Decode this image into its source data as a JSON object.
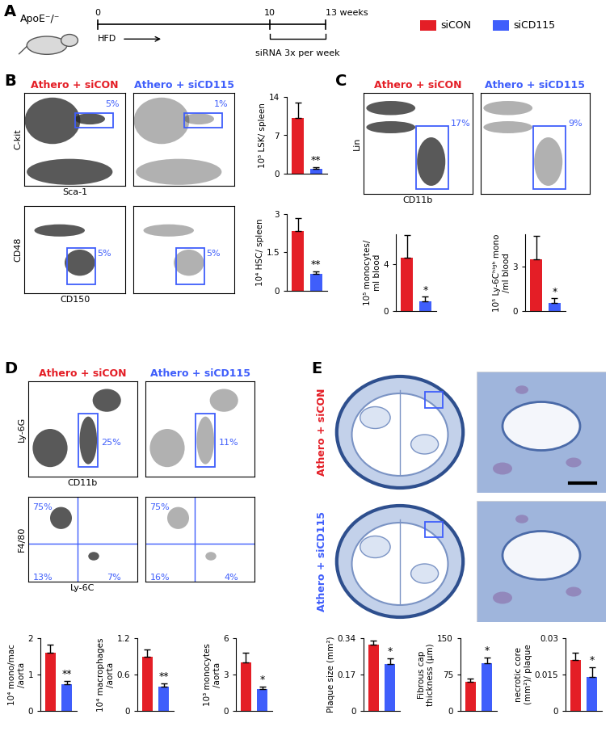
{
  "legend": [
    {
      "name": "siCON",
      "color": "#e41e26"
    },
    {
      "name": "siCD115",
      "color": "#3f5efb"
    }
  ],
  "panel_labels": [
    "A",
    "B",
    "C",
    "D",
    "E"
  ],
  "panel_a": {
    "mouse_label": "ApoE⁻/⁻",
    "timeline_ticks": [
      "0",
      "10",
      "13 weeks"
    ],
    "diet": "HFD",
    "treatment": "siRNA 3x per week"
  },
  "flow_plots": [
    {
      "title": "Athero + siCON",
      "group": "siCON",
      "xlabel": "Sca-1",
      "ylabel": "C-kit",
      "gates": [
        "5%"
      ]
    },
    {
      "title": "Athero + siCD115",
      "group": "siCD115",
      "gates": [
        "1%"
      ]
    },
    {
      "group": "siCON",
      "xlabel": "CD150",
      "ylabel": "CD48",
      "gates": [
        "5%"
      ]
    },
    {
      "group": "siCD115",
      "gates": [
        "5%"
      ]
    },
    {
      "title": "Athero + siCON",
      "group": "siCON",
      "xlabel": "CD11b",
      "ylabel": "Lin",
      "gates": [
        "17%"
      ]
    },
    {
      "title": "Athero + siCD115",
      "group": "siCD115",
      "gates": [
        "9%"
      ]
    },
    {
      "title": "Athero + siCON",
      "group": "siCON",
      "xlabel": "CD11b",
      "ylabel": "Ly-6G",
      "gates": [
        "25%"
      ]
    },
    {
      "title": "Athero + siCD115",
      "group": "siCD115",
      "gates": [
        "11%"
      ]
    },
    {
      "group": "siCON",
      "xlabel": "Ly-6C",
      "ylabel": "F4/80",
      "gates": [
        "75%",
        "13%",
        "7%"
      ]
    },
    {
      "group": "siCD115",
      "gates": [
        "75%",
        "16%",
        "4%"
      ]
    }
  ],
  "histology": [
    {
      "title": "Athero + siCON",
      "group": "siCON"
    },
    {
      "title": "Athero + siCD115",
      "group": "siCD115"
    }
  ],
  "chart_data": [
    {
      "type": "bar",
      "ylabel": "10⁵ LSK/ spleen",
      "categories": [
        null,
        null
      ],
      "values": [
        10.2,
        0.9
      ],
      "errors": [
        2.8,
        0.3
      ],
      "colors": [
        "#e41e26",
        "#3f5efb"
      ],
      "ylim": [
        0,
        14
      ],
      "yticks": [
        0,
        7,
        14
      ],
      "significance": "**",
      "tick_labels": "y"
    },
    {
      "type": "bar",
      "ylabel": "10⁴ HSC/ spleen",
      "categories": [
        null,
        null
      ],
      "values": [
        2.35,
        0.65
      ],
      "errors": [
        0.5,
        0.1
      ],
      "colors": [
        "#e41e26",
        "#3f5efb"
      ],
      "ylim": [
        0,
        3
      ],
      "yticks": [
        0,
        1.5,
        3
      ],
      "significance": "**",
      "tick_labels": "y"
    },
    {
      "type": "bar",
      "ylabel": "10⁵ monocytes/\nml blood",
      "categories": [
        null,
        null
      ],
      "values": [
        4.5,
        0.8
      ],
      "errors": [
        1.9,
        0.4
      ],
      "colors": [
        "#e41e26",
        "#3f5efb"
      ],
      "ylim": [
        0,
        6.5
      ],
      "yticks": [
        0,
        4
      ],
      "significance": "*",
      "tick_labels": "y"
    },
    {
      "type": "bar",
      "ylabel": "10⁵ Ly-6Cʰⁱᵍʰ mono\n/ml blood",
      "categories": [
        null,
        null
      ],
      "values": [
        3.5,
        0.55
      ],
      "errors": [
        1.6,
        0.3
      ],
      "colors": [
        "#e41e26",
        "#3f5efb"
      ],
      "ylim": [
        0,
        5.2
      ],
      "yticks": [
        0,
        3
      ],
      "significance": "*",
      "tick_labels": "y"
    },
    {
      "type": "bar",
      "ylabel": "10⁴ mono/mac\n/aorta",
      "categories": [
        null,
        null
      ],
      "values": [
        1.6,
        0.73
      ],
      "errors": [
        0.22,
        0.1
      ],
      "colors": [
        "#e41e26",
        "#3f5efb"
      ],
      "ylim": [
        0,
        2
      ],
      "yticks": [
        0,
        1,
        2
      ],
      "significance": "**",
      "tick_labels": "y"
    },
    {
      "type": "bar",
      "ylabel": "10⁴ macrophages\n/aorta",
      "categories": [
        null,
        null
      ],
      "values": [
        0.9,
        0.4
      ],
      "errors": [
        0.12,
        0.05
      ],
      "colors": [
        "#e41e26",
        "#3f5efb"
      ],
      "ylim": [
        0,
        1.2
      ],
      "yticks": [
        0,
        0.6,
        1.2
      ],
      "significance": "**",
      "tick_labels": "y"
    },
    {
      "type": "bar",
      "ylabel": "10³ monocytes\n/aorta",
      "categories": [
        null,
        null
      ],
      "values": [
        4.0,
        1.8
      ],
      "errors": [
        0.8,
        0.2
      ],
      "colors": [
        "#e41e26",
        "#3f5efb"
      ],
      "ylim": [
        0,
        6
      ],
      "yticks": [
        0,
        3,
        6
      ],
      "significance": "*",
      "tick_labels": "y"
    },
    {
      "type": "bar",
      "ylabel": "Plaque size (mm²)",
      "categories": [
        null,
        null
      ],
      "values": [
        0.31,
        0.22
      ],
      "errors": [
        0.02,
        0.025
      ],
      "colors": [
        "#e41e26",
        "#3f5efb"
      ],
      "ylim": [
        0,
        0.34
      ],
      "yticks": [
        0,
        0.17,
        0.34
      ],
      "significance": "*",
      "tick_labels": "y"
    },
    {
      "type": "bar",
      "ylabel": "Fibrous cap\nthickness (µm)",
      "categories": [
        null,
        null
      ],
      "values": [
        60,
        98
      ],
      "errors": [
        7,
        12
      ],
      "colors": [
        "#e41e26",
        "#3f5efb"
      ],
      "ylim": [
        0,
        150
      ],
      "yticks": [
        0,
        75,
        150
      ],
      "significance": "*",
      "tick_labels": "y"
    },
    {
      "type": "bar",
      "ylabel": "necrotic core\n(mm²)/ plaque",
      "categories": [
        null,
        null
      ],
      "values": [
        0.021,
        0.014
      ],
      "errors": [
        0.003,
        0.004
      ],
      "colors": [
        "#e41e26",
        "#3f5efb"
      ],
      "ylim": [
        0,
        0.03
      ],
      "yticks": [
        0,
        0.015,
        0.03
      ],
      "significance": "*",
      "tick_labels": "y"
    }
  ]
}
